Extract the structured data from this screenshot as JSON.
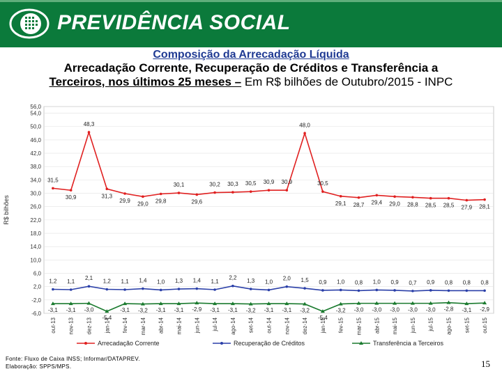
{
  "header": {
    "brand": "PREVIDÊNCIA SOCIAL",
    "colors": {
      "bg": "#0b7a3b",
      "text": "#ffffff"
    }
  },
  "title": {
    "line1": "Composição da Arrecadação Líquida",
    "line2": "Arrecadação Corrente, Recuperação de Créditos e Transferência a",
    "line3_bold": "Terceiros, nos últimos 25 meses –",
    "line3_rest": " Em R$ bilhões de Outubro/2015 - INPC"
  },
  "chart_data": {
    "type": "line",
    "ylabel": "R$ bilhões",
    "ylim": [
      -6,
      56
    ],
    "ticks": [
      "56,0",
      "54,0",
      "50,0",
      "46,0",
      "42,0",
      "38,0",
      "34,0",
      "30,0",
      "26,0",
      "22,0",
      "18,0",
      "14,0",
      "10,0",
      "6,0",
      "2,0",
      "-2,0",
      "-6,0"
    ],
    "tick_values": [
      56,
      54,
      50,
      46,
      42,
      38,
      34,
      30,
      26,
      22,
      18,
      14,
      10,
      6,
      2,
      -2,
      -6
    ],
    "categories": [
      "out-13",
      "nov-13",
      "dez-13",
      "jan-14",
      "fev-14",
      "mar-14",
      "abr-14",
      "mai-14",
      "jun-14",
      "jul-14",
      "ago-14",
      "set-14",
      "out-14",
      "nov-14",
      "dez-14",
      "jan-15",
      "fev-15",
      "mar-15",
      "abr-15",
      "mai-15",
      "jun-15",
      "jul-15",
      "ago-15",
      "set-15",
      "out-15"
    ],
    "series": [
      {
        "name": "Arrecadação Corrente",
        "color": "#e02020",
        "values": [
          31.5,
          30.9,
          48.3,
          31.3,
          29.9,
          29.0,
          29.8,
          30.1,
          29.6,
          30.2,
          30.3,
          30.5,
          30.9,
          30.9,
          48.0,
          30.5,
          29.1,
          28.7,
          29.4,
          29.0,
          28.8,
          28.5,
          28.5,
          27.9,
          28.1
        ],
        "labels": [
          "31,5",
          "30,9",
          "48,3",
          "31,3",
          "29,9",
          "29,0",
          "29,8",
          "30,1",
          "29,6",
          "30,2",
          "30,3",
          "30,5",
          "30,9",
          "30,9",
          "48,0",
          "30,5",
          "29,1",
          "28,7",
          "29,4",
          "29,0",
          "28,8",
          "28,5",
          "28,5",
          "27,9",
          "28,1"
        ]
      },
      {
        "name": "Recuperação de Créditos",
        "color": "#2a3fa8",
        "values": [
          1.2,
          1.1,
          2.1,
          1.2,
          1.1,
          1.4,
          1.0,
          1.3,
          1.4,
          1.1,
          2.2,
          1.3,
          1.0,
          2.0,
          1.5,
          0.9,
          1.0,
          0.8,
          1.0,
          0.9,
          0.7,
          0.9,
          0.8,
          0.8,
          0.8
        ],
        "labels": [
          "1,2",
          "1,1",
          "2,1",
          "1,2",
          "1,1",
          "1,4",
          "1,0",
          "1,3",
          "1,4",
          "1,1",
          "2,2",
          "1,3",
          "1,0",
          "2,0",
          "1,5",
          "0,9",
          "1,0",
          "0,8",
          "1,0",
          "0,9",
          "0,7",
          "0,9",
          "0,8",
          "0,8",
          "0,8"
        ]
      },
      {
        "name": "Transferência a Terceiros",
        "color": "#1a7a2e",
        "values": [
          -3.1,
          -3.1,
          -3.0,
          -5.4,
          -3.1,
          -3.2,
          -3.1,
          -3.1,
          -2.9,
          -3.1,
          -3.1,
          -3.2,
          -3.1,
          -3.1,
          -3.2,
          -5.4,
          -3.2,
          -3.0,
          -3.0,
          -3.0,
          -3.0,
          -3.0,
          -2.8,
          -3.1,
          -2.9
        ],
        "labels": [
          "-3,1",
          "-3,1",
          "-3,0",
          "-5,4",
          "-3,1",
          "-3,2",
          "-3,1",
          "-3,1",
          "-2,9",
          "-3,1",
          "-3,1",
          "-3,2",
          "-3,1",
          "-3,1",
          "-3,2",
          "-5,4",
          "-3,2",
          "-3,0",
          "-3,0",
          "-3,0",
          "-3,0",
          "-3,0",
          "-2,8",
          "-3,1",
          "-2,9"
        ]
      }
    ]
  },
  "footer": {
    "source": "Fonte: Fluxo de Caixa INSS; Informar/DATAPREV.",
    "elaboration": "Elaboração: SPPS/MPS.",
    "page": "15"
  }
}
